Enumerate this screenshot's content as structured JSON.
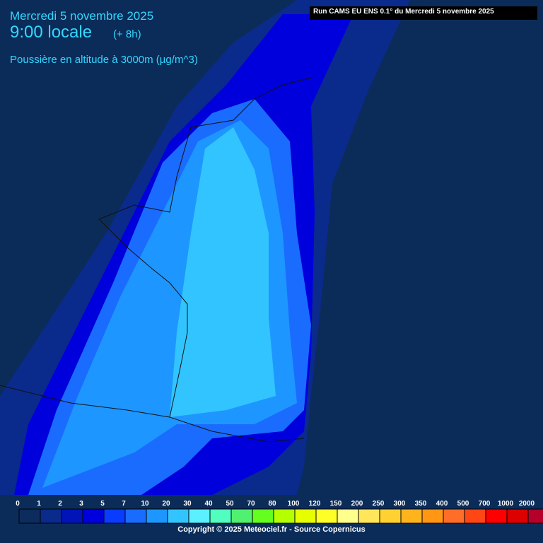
{
  "header": {
    "date": "Mercredi 5 novembre 2025",
    "time": "9:00 locale",
    "offset": "(+ 8h)",
    "variable": "Poussière en altitude à 3000m (µg/m^3)",
    "run": "Run CAMS EU ENS 0.1° du Mercredi 5 novembre 2025"
  },
  "legend": {
    "labels": [
      0,
      1,
      2,
      3,
      5,
      7,
      10,
      20,
      30,
      40,
      50,
      70,
      80,
      100,
      120,
      150,
      200,
      250,
      300,
      350,
      400,
      500,
      700,
      1000,
      2000
    ],
    "colors": [
      "#0c2c5e",
      "#0a2a8c",
      "#0014b8",
      "#0000dc",
      "#0a3cff",
      "#1a6cff",
      "#1e96ff",
      "#32c4ff",
      "#5af0ff",
      "#50ffc0",
      "#50f070",
      "#64ff1e",
      "#b4ff00",
      "#e6ff00",
      "#ffff28",
      "#ffff8c",
      "#ffe65a",
      "#ffd232",
      "#ffb41e",
      "#ff9614",
      "#ff6e28",
      "#ff4614",
      "#ff0000",
      "#dc0000",
      "#b4002a"
    ]
  },
  "footer": {
    "copyright": "Copyright © 2025 Meteociel.fr - Source Copernicus"
  }
}
